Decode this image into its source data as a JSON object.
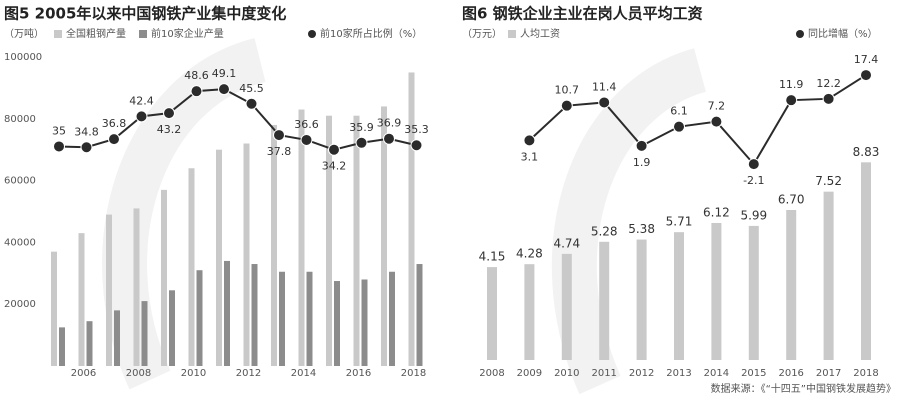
{
  "chart_data": [
    {
      "type": "bar",
      "title": "图5 2005年以来中国钢铁产业集中度变化",
      "unit_label": "（万吨）",
      "categories": [
        null,
        2006,
        null,
        2008,
        null,
        2010,
        null,
        2012,
        null,
        2014,
        null,
        2016,
        null,
        2018
      ],
      "series": [
        {
          "name": "全国粗钢产量",
          "color": "#c9c9c9",
          "values": [
            37000,
            43000,
            49000,
            51000,
            57000,
            64000,
            70000,
            72000,
            78000,
            83000,
            81000,
            81000,
            84000,
            95000
          ]
        },
        {
          "name": "前10家企业产量",
          "color": "#8c8c8c",
          "values": [
            12500,
            14500,
            18000,
            21000,
            24500,
            31000,
            34000,
            33000,
            30500,
            30500,
            27500,
            28000,
            30500,
            33000
          ]
        },
        {
          "name": "前10家所占比例（%）",
          "color": "#2b2b2b",
          "type": "line",
          "axis": "y2",
          "values": [
            35,
            34.8,
            36.8,
            42.4,
            43.2,
            48.6,
            49.1,
            45.5,
            37.8,
            36.6,
            34.2,
            35.9,
            36.9,
            35.3
          ]
        }
      ],
      "ylim": [
        0,
        100000
      ],
      "yticks": [
        20000,
        40000,
        60000,
        80000,
        100000
      ],
      "y2lim": [
        -19,
        57
      ]
    },
    {
      "type": "bar",
      "title": "图6  钢铁企业主业在岗人员平均工资",
      "unit_label": "（万元）",
      "categories": [
        2008,
        2009,
        2010,
        2011,
        2012,
        2013,
        2014,
        2015,
        2016,
        2017,
        2018
      ],
      "series": [
        {
          "name": "人均工资",
          "color": "#c9c9c9",
          "values": [
            4.15,
            4.28,
            4.74,
            5.28,
            5.38,
            5.71,
            6.12,
            5.99,
            6.7,
            7.52,
            8.83
          ],
          "value_labels": [
            "4.15",
            "4.28",
            "4.74",
            "5.28",
            "5.38",
            "5.71",
            "6.12",
            "5.99",
            "6.70",
            "7.52",
            "8.83"
          ]
        },
        {
          "name": "同比增幅（%）",
          "color": "#2b2b2b",
          "type": "line",
          "axis": "y2",
          "values": [
            null,
            3.1,
            10.7,
            11.4,
            1.9,
            6.1,
            7.2,
            -2.1,
            11.9,
            12.2,
            17.4
          ]
        }
      ],
      "ylim": [
        0,
        13.4
      ],
      "y2lim": [
        -45,
        20.7
      ]
    }
  ],
  "source": "数据来源：《“十四五”中国钢铁发展趋势》"
}
